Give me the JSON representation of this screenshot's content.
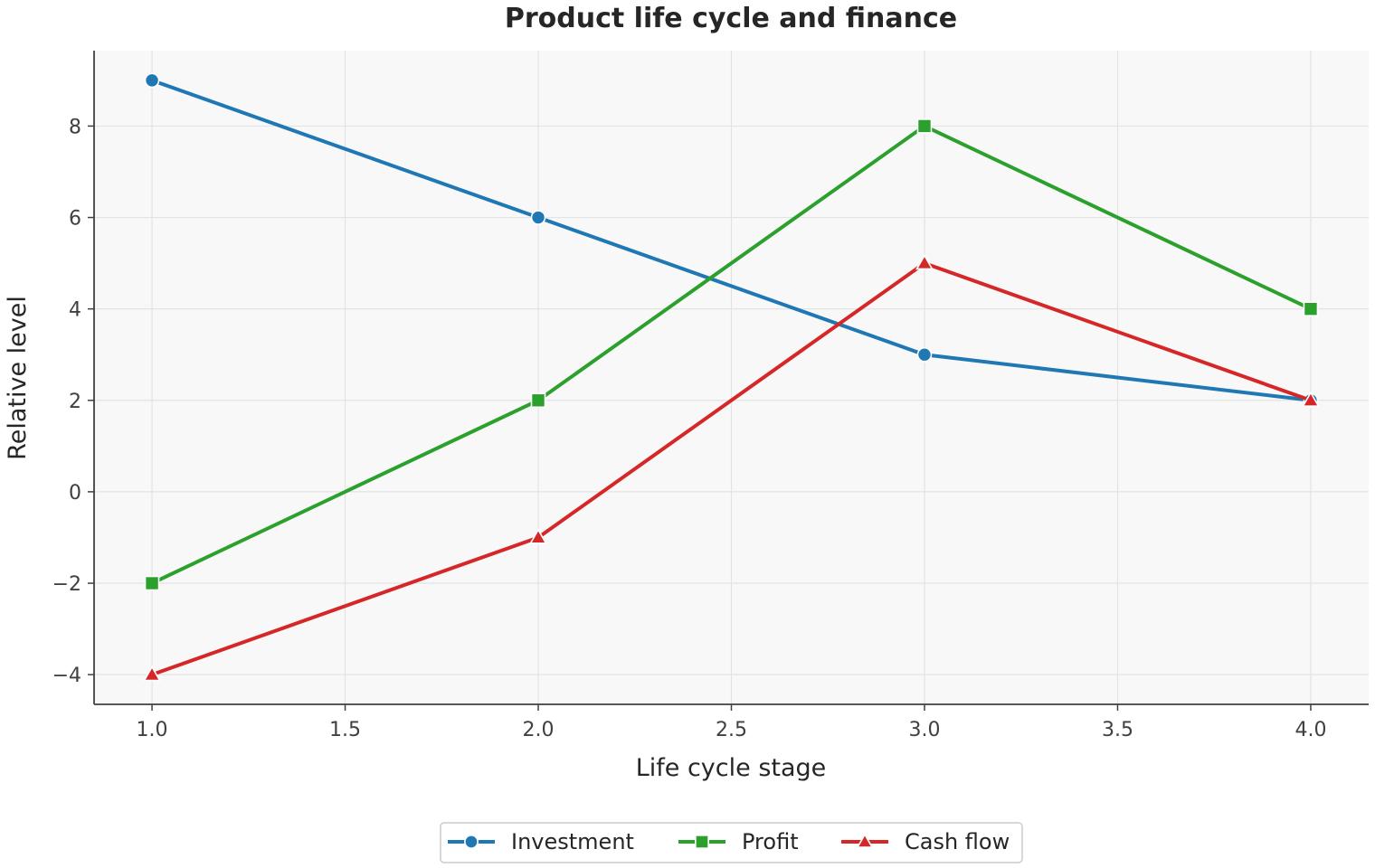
{
  "chart_data": {
    "type": "line",
    "title": "Product life cycle and finance",
    "xlabel": "Life cycle stage",
    "ylabel": "Relative level",
    "x": [
      1,
      2,
      3,
      4
    ],
    "xlim": [
      0.85,
      4.15
    ],
    "ylim": [
      -4.65,
      9.65
    ],
    "xticks": [
      1.0,
      1.5,
      2.0,
      2.5,
      3.0,
      3.5,
      4.0
    ],
    "xtick_labels": [
      "1.0",
      "1.5",
      "2.0",
      "2.5",
      "3.0",
      "3.5",
      "4.0"
    ],
    "yticks": [
      -4,
      -2,
      0,
      2,
      4,
      6,
      8
    ],
    "ytick_labels": [
      "−4",
      "−2",
      "0",
      "2",
      "4",
      "6",
      "8"
    ],
    "grid": true,
    "legend_position": "bottom-center",
    "series": [
      {
        "name": "Investment",
        "values": [
          9,
          6,
          3,
          2
        ],
        "color": "#1f77b4",
        "marker": "circle"
      },
      {
        "name": "Profit",
        "values": [
          -2,
          2,
          8,
          4
        ],
        "color": "#2ca02c",
        "marker": "square"
      },
      {
        "name": "Cash flow",
        "values": [
          -4,
          -1,
          5,
          2
        ],
        "color": "#d62728",
        "marker": "triangle"
      }
    ]
  }
}
